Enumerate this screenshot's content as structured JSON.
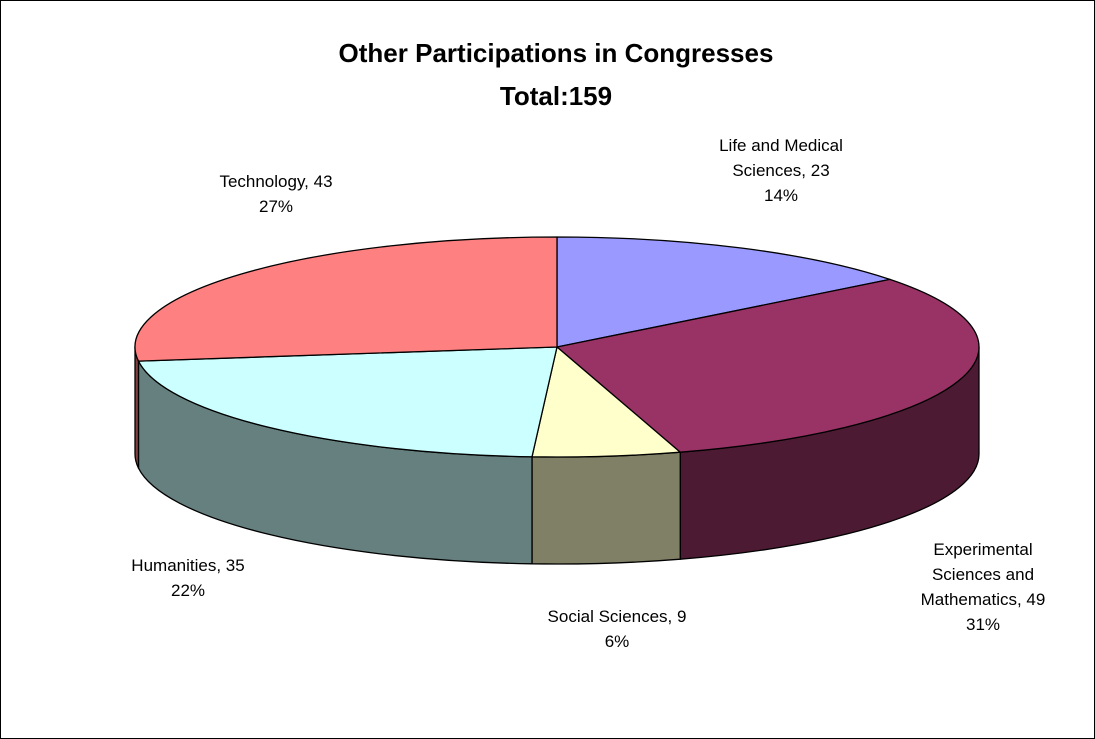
{
  "chart_data": {
    "type": "pie",
    "style": "3d-exploded-none",
    "title": "Other Participations in Congresses",
    "subtitle": "Total:159",
    "total": 159,
    "slices": [
      {
        "name": "Life and Medical Sciences",
        "value": 23,
        "percent": 14,
        "color": "#9999ff",
        "label_lines": [
          "Life and Medical",
          "Sciences, 23",
          "14%"
        ]
      },
      {
        "name": "Experimental Sciences and Mathematics",
        "value": 49,
        "percent": 31,
        "color": "#993366",
        "label_lines": [
          "Experimental",
          "Sciences and",
          "Mathematics, 49",
          "31%"
        ]
      },
      {
        "name": "Social Sciences",
        "value": 9,
        "percent": 6,
        "color": "#ffffcc",
        "label_lines": [
          "Social Sciences, 9",
          "6%"
        ]
      },
      {
        "name": "Humanities",
        "value": 35,
        "percent": 22,
        "color": "#ccffff",
        "label_lines": [
          "Humanities, 35",
          "22%"
        ]
      },
      {
        "name": "Technology",
        "value": 43,
        "percent": 27,
        "color": "#ff8080",
        "label_lines": [
          "Technology, 43",
          "27%"
        ]
      }
    ],
    "legend": "none",
    "data_labels": "category, value, percent"
  }
}
